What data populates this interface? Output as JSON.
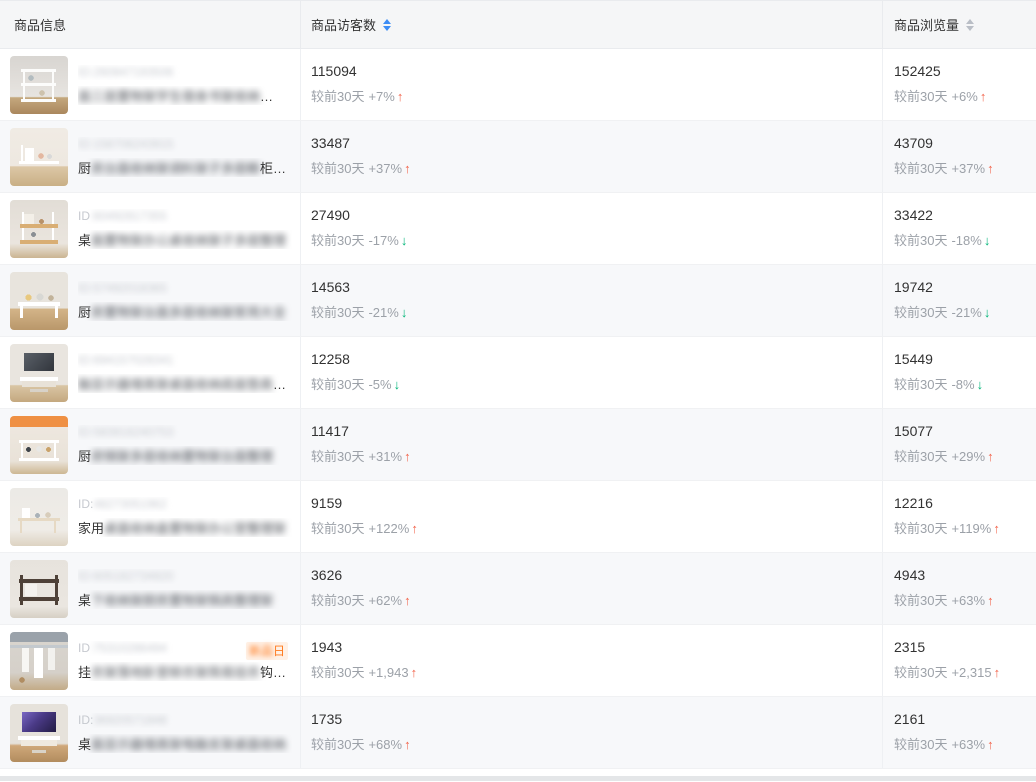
{
  "header": {
    "columns": [
      {
        "label": "商品信息",
        "sortable": false,
        "active": false
      },
      {
        "label": "商品访客数",
        "sortable": true,
        "active": true
      },
      {
        "label": "商品浏览量",
        "sortable": true,
        "active": false
      }
    ]
  },
  "compare_label": "较前30天",
  "icons": {
    "up": "↑",
    "down": "↓",
    "sort_caret": "caret-up-down",
    "up_name": "trend-up-icon",
    "down_name": "trend-down-icon"
  },
  "colors": {
    "trend_up": "#f2654d",
    "trend_down": "#00b578",
    "sort_active": "#3d8df5",
    "sort_inactive": "#b9bec6",
    "badge_bg": "#fff1e6",
    "badge_text": "#ff7a1e"
  },
  "products": [
    {
      "thumb_desc": "white wall shelf on wood floor",
      "id_prefix": "",
      "id_blur": "ID:260847193506",
      "title_prefix": "",
      "title_blur": "面三层置物架学生宿舍书架收纳",
      "title_suffix": "…",
      "badge_blur": null,
      "badge_suffix": null,
      "visitors": {
        "value": "115094",
        "change": "+7%",
        "trend": "up"
      },
      "views": {
        "value": "152425",
        "change": "+6%",
        "trend": "up"
      }
    },
    {
      "thumb_desc": "white desktop organizer rack",
      "id_prefix": "",
      "id_blur": "ID:158706243915",
      "title_prefix": "厨",
      "title_blur": "房台面收纳架调料架子多层橱",
      "title_suffix": "柜…",
      "badge_blur": null,
      "badge_suffix": null,
      "visitors": {
        "value": "33487",
        "change": "+37%",
        "trend": "up"
      },
      "views": {
        "value": "43709",
        "change": "+37%",
        "trend": "up"
      }
    },
    {
      "thumb_desc": "two-tier wood and white desk shelf",
      "id_prefix": "ID",
      "id_blur": ":60492817355",
      "title_prefix": "桌",
      "title_blur": "面置物架办公桌收纳架子多层整理",
      "title_suffix": "",
      "badge_blur": null,
      "badge_suffix": null,
      "visitors": {
        "value": "27490",
        "change": "-17%",
        "trend": "down"
      },
      "views": {
        "value": "33422",
        "change": "-18%",
        "trend": "down"
      }
    },
    {
      "thumb_desc": "countertop shelf with jars on wood counter",
      "id_prefix": "",
      "id_blur": "ID:57492018365",
      "title_prefix": "厨",
      "title_blur": "房置物架台面多层收纳架家用大全",
      "title_suffix": "",
      "badge_blur": null,
      "badge_suffix": null,
      "visitors": {
        "value": "14563",
        "change": "-21%",
        "trend": "down"
      },
      "views": {
        "value": "19742",
        "change": "-21%",
        "trend": "down"
      }
    },
    {
      "thumb_desc": "monitor riser stand with dark screen",
      "id_prefix": "",
      "id_blur": "ID:694157028341",
      "title_prefix": "",
      "title_blur": "脑显示器增高架桌面收纳底座垫高",
      "title_suffix": "…",
      "badge_blur": null,
      "badge_suffix": null,
      "visitors": {
        "value": "12258",
        "change": "-5%",
        "trend": "down"
      },
      "views": {
        "value": "15449",
        "change": "-8%",
        "trend": "down"
      }
    },
    {
      "thumb_desc": "kitchen rack with orange promo banner",
      "id_prefix": "",
      "id_blur": "ID:583916240753",
      "title_prefix": "厨",
      "title_blur": "房锅架多层收纳置物架台面整理",
      "title_suffix": "",
      "badge_blur": null,
      "badge_suffix": null,
      "visitors": {
        "value": "11417",
        "change": "+31%",
        "trend": "up"
      },
      "views": {
        "value": "15077",
        "change": "+29%",
        "trend": "up"
      }
    },
    {
      "thumb_desc": "light desktop organizer shelf",
      "id_prefix": "ID:",
      "id_blur": "48273051962",
      "title_prefix": "家用",
      "title_blur": "桌面收纳盒置物架办公室整理架",
      "title_suffix": "",
      "badge_blur": null,
      "badge_suffix": null,
      "visitors": {
        "value": "9159",
        "change": "+122%",
        "trend": "up"
      },
      "views": {
        "value": "12216",
        "change": "+119%",
        "trend": "up"
      }
    },
    {
      "thumb_desc": "dark metal two-tier storage rack",
      "id_prefix": "",
      "id_blur": "ID:605182734920",
      "title_prefix": "桌",
      "title_blur": "下收纳架厨房置物架锅具整理架",
      "title_suffix": "",
      "badge_blur": null,
      "badge_suffix": null,
      "visitors": {
        "value": "3626",
        "change": "+62%",
        "trend": "up"
      },
      "views": {
        "value": "4943",
        "change": "+63%",
        "trend": "up"
      }
    },
    {
      "thumb_desc": "clothes hanging rack with white garments",
      "id_prefix": "ID",
      "id_blur": ":75310286494",
      "title_prefix": "挂",
      "title_blur": "衣架落地卧室晾衣架简易挂衣",
      "title_suffix": "钩…",
      "badge_blur": "新品",
      "badge_suffix": "日",
      "visitors": {
        "value": "1943",
        "change": "+1,943",
        "trend": "up"
      },
      "views": {
        "value": "2315",
        "change": "+2,315",
        "trend": "up"
      }
    },
    {
      "thumb_desc": "monitor stand with purple screen on wood desk",
      "id_prefix": "ID:",
      "id_blur": "36920571848",
      "title_prefix": "桌",
      "title_blur": "面显示器增高架电脑支架桌面收纳",
      "title_suffix": "",
      "badge_blur": null,
      "badge_suffix": null,
      "visitors": {
        "value": "1735",
        "change": "+68%",
        "trend": "up"
      },
      "views": {
        "value": "2161",
        "change": "+63%",
        "trend": "up"
      }
    }
  ]
}
